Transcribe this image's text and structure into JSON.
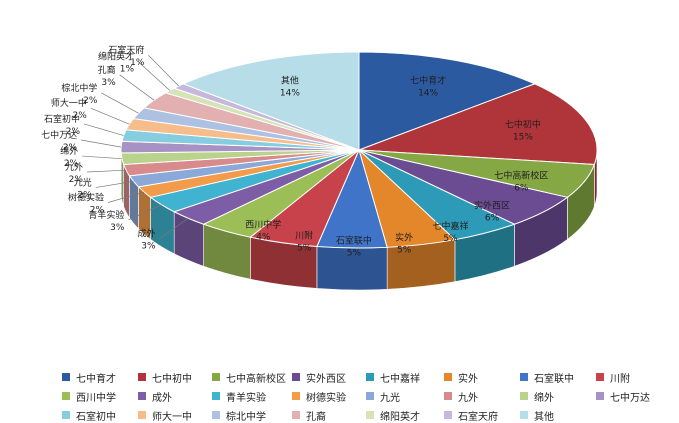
{
  "chart_data": {
    "type": "pie",
    "title": "",
    "slices": [
      {
        "label": "七中育才",
        "value_label": "14%",
        "value": 14,
        "color": "#2c5aa0"
      },
      {
        "label": "七中初中",
        "value_label": "15%",
        "value": 15,
        "color": "#b0353a"
      },
      {
        "label": "七中高新校区",
        "value_label": "6%",
        "value": 6,
        "color": "#85a844"
      },
      {
        "label": "实外西区",
        "value_label": "6%",
        "value": 6,
        "color": "#6b4c93"
      },
      {
        "label": "七中嘉祥",
        "value_label": "5%",
        "value": 5,
        "color": "#2d9bb7"
      },
      {
        "label": "实外",
        "value_label": "5%",
        "value": 5,
        "color": "#e4862a"
      },
      {
        "label": "石室联中",
        "value_label": "5%",
        "value": 5,
        "color": "#3f74c9"
      },
      {
        "label": "川附",
        "value_label": "5%",
        "value": 5,
        "color": "#c7424a"
      },
      {
        "label": "西川中学",
        "value_label": "4%",
        "value": 4,
        "color": "#9cbe57"
      },
      {
        "label": "成外",
        "value_label": "3%",
        "value": 3,
        "color": "#7d5ea6"
      },
      {
        "label": "青羊实验",
        "value_label": "3%",
        "value": 3,
        "color": "#3fb3cf"
      },
      {
        "label": "树德实验",
        "value_label": "2%",
        "value": 2,
        "color": "#f29b4a"
      },
      {
        "label": "九光",
        "value_label": "2%",
        "value": 2,
        "color": "#8aa8d8"
      },
      {
        "label": "九外",
        "value_label": "2%",
        "value": 2,
        "color": "#d98a8c"
      },
      {
        "label": "绵外",
        "value_label": "2%",
        "value": 2,
        "color": "#b9d38d"
      },
      {
        "label": "七中万达",
        "value_label": "2%",
        "value": 2,
        "color": "#a792c4"
      },
      {
        "label": "石室初中",
        "value_label": "2%",
        "value": 2,
        "color": "#86cde0"
      },
      {
        "label": "师大一中",
        "value_label": "2%",
        "value": 2,
        "color": "#f6bd8a"
      },
      {
        "label": "棕北中学",
        "value_label": "2%",
        "value": 2,
        "color": "#adc1e3"
      },
      {
        "label": "孔裔",
        "value_label": "3%",
        "value": 3,
        "color": "#e3b0b1"
      },
      {
        "label": "绵阳英才",
        "value_label": "1%",
        "value": 1,
        "color": "#d4e4b6"
      },
      {
        "label": "石室天府",
        "value_label": "1%",
        "value": 1,
        "color": "#c6b8dc"
      },
      {
        "label": "其他",
        "value_label": "14%",
        "value": 14,
        "color": "#b7dde8"
      }
    ],
    "legend_position": "bottom"
  }
}
